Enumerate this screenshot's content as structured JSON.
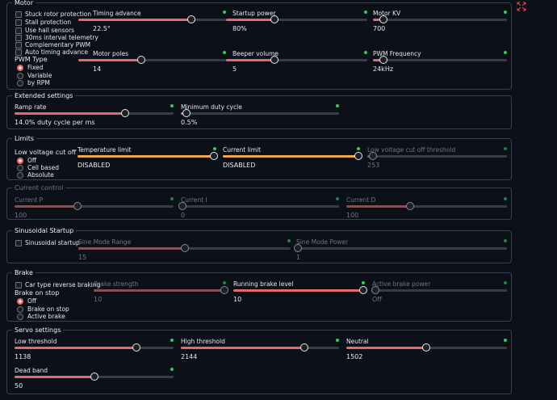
{
  "sections": [
    {
      "title": "Motor",
      "checkboxes": [
        "Stuck rotor protection",
        "Stall protection",
        "Use hall sensors",
        "30ms interval telemetry",
        "Complementary PWM",
        "Auto timing advance"
      ],
      "radio": {
        "title": "PWM Type",
        "options": [
          "Fixed",
          "Variable",
          "by RPM"
        ]
      },
      "sliders": [
        {
          "label": "Timing advance",
          "value": "22.5°"
        },
        {
          "label": "Startup power",
          "value": "80%"
        },
        {
          "label": "Motor KV",
          "value": "700"
        },
        {
          "label": "Motor poles",
          "value": "14"
        },
        {
          "label": "Beeper volume",
          "value": "5"
        },
        {
          "label": "PWM Frequency",
          "value": "24kHz"
        }
      ]
    },
    {
      "title": "Extended settings",
      "sliders": [
        {
          "label": "Ramp rate",
          "value": "14.0% duty cycle per ms"
        },
        {
          "label": "Minimum duty cycle",
          "value": "0.5%"
        }
      ]
    },
    {
      "title": "Limits",
      "radio": {
        "title": "Low voltage cut off",
        "options": [
          "Off",
          "Cell based",
          "Absolute"
        ]
      },
      "sliders": [
        {
          "label": "Temperature limit",
          "value": "DISABLED"
        },
        {
          "label": "Current limit",
          "value": "DISABLED"
        },
        {
          "label": "Low voltage cut off threshold",
          "value": "253"
        }
      ]
    },
    {
      "title": "Current control",
      "sliders": [
        {
          "label": "Current P",
          "value": "100"
        },
        {
          "label": "Current I",
          "value": "0"
        },
        {
          "label": "Current D",
          "value": "100"
        }
      ]
    },
    {
      "title": "Sinusoidal Startup",
      "checkboxes": [
        "Sinusoidal startup"
      ],
      "sliders": [
        {
          "label": "Sine Mode Range",
          "value": "15"
        },
        {
          "label": "Sine Mode Power",
          "value": "1"
        }
      ]
    },
    {
      "title": "Brake",
      "checkboxes": [
        "Car type reverse braking"
      ],
      "radio": {
        "title": "Brake on stop",
        "options": [
          "Off",
          "Brake on stop",
          "Active brake"
        ]
      },
      "sliders": [
        {
          "label": "Brake strength",
          "value": "10"
        },
        {
          "label": "Running brake level",
          "value": "10"
        },
        {
          "label": "Active brake power",
          "value": "Off"
        }
      ]
    },
    {
      "title": "Servo settings",
      "sliders": [
        {
          "label": "Low threshold",
          "value": "1138"
        },
        {
          "label": "High threshold",
          "value": "2144"
        },
        {
          "label": "Neutral",
          "value": "1502"
        },
        {
          "label": "Dead band",
          "value": "50"
        }
      ]
    }
  ]
}
